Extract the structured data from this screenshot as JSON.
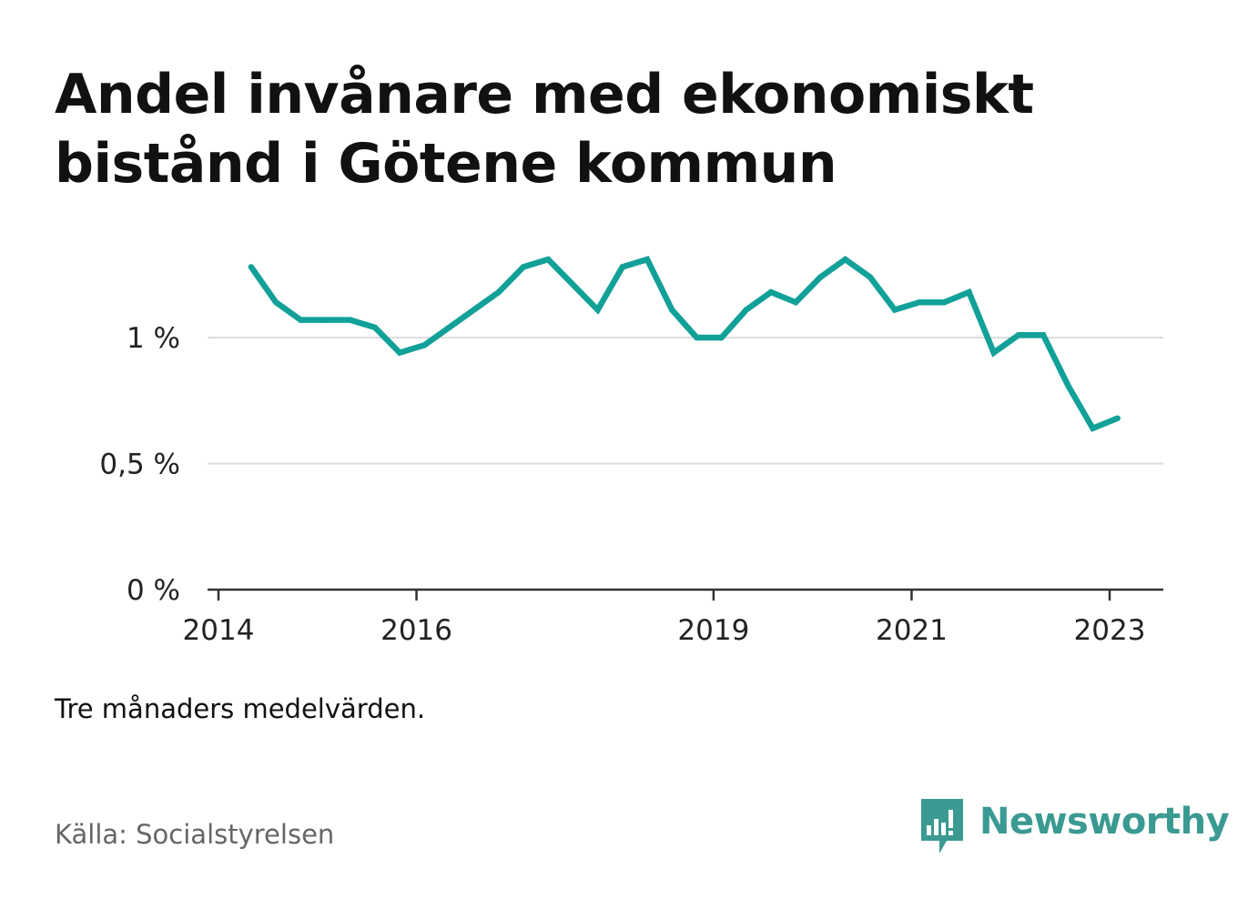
{
  "title": "Andel invånare med ekonomiskt bistånd i Götene kommun",
  "note": "Tre månaders medelvärden.",
  "source": "Källa: Socialstyrelsen",
  "brand": {
    "name": "Newsworthy",
    "color": "#3a9a92",
    "logo_icon": "newsworthy-chart-bubble-icon"
  },
  "chart_data": {
    "type": "line",
    "title": "Andel invånare med ekonomiskt bistånd i Götene kommun",
    "xlabel": "",
    "ylabel": "",
    "ylim": [
      0,
      1.4
    ],
    "xlim": [
      2014.0,
      2023.25
    ],
    "grid": true,
    "line_color": "#12a199",
    "y_ticks": [
      {
        "value": 0,
        "label": "0 %"
      },
      {
        "value": 0.5,
        "label": "0,5 %"
      },
      {
        "value": 1,
        "label": "1 %"
      }
    ],
    "x_ticks": [
      {
        "value": 2014.0,
        "label": "2014"
      },
      {
        "value": 2016.0,
        "label": "2016"
      },
      {
        "value": 2019.0,
        "label": "2019"
      },
      {
        "value": 2021.0,
        "label": "2021"
      },
      {
        "value": 2023.0,
        "label": "2023"
      }
    ],
    "series": [
      {
        "x": [
          2014.33,
          2014.58,
          2014.83,
          2015.08,
          2015.33,
          2015.58,
          2015.83,
          2016.08,
          2016.33,
          2016.58,
          2016.83,
          2017.08,
          2017.33,
          2017.58,
          2017.83,
          2018.08,
          2018.33,
          2018.58,
          2018.83,
          2019.08,
          2019.33,
          2019.58,
          2019.83,
          2020.08,
          2020.33,
          2020.58,
          2020.83,
          2021.08,
          2021.33,
          2021.58,
          2021.83,
          2022.08,
          2022.33,
          2022.58,
          2022.83,
          2023.08
        ],
        "values": [
          1.28,
          1.14,
          1.07,
          1.07,
          1.07,
          1.04,
          0.94,
          0.97,
          1.04,
          1.11,
          1.18,
          1.28,
          1.31,
          1.21,
          1.11,
          1.28,
          1.31,
          1.11,
          1.0,
          1.0,
          1.11,
          1.18,
          1.14,
          1.24,
          1.31,
          1.24,
          1.11,
          1.14,
          1.14,
          1.18,
          0.94,
          1.01,
          1.01,
          0.81,
          0.64,
          0.68
        ]
      }
    ]
  }
}
